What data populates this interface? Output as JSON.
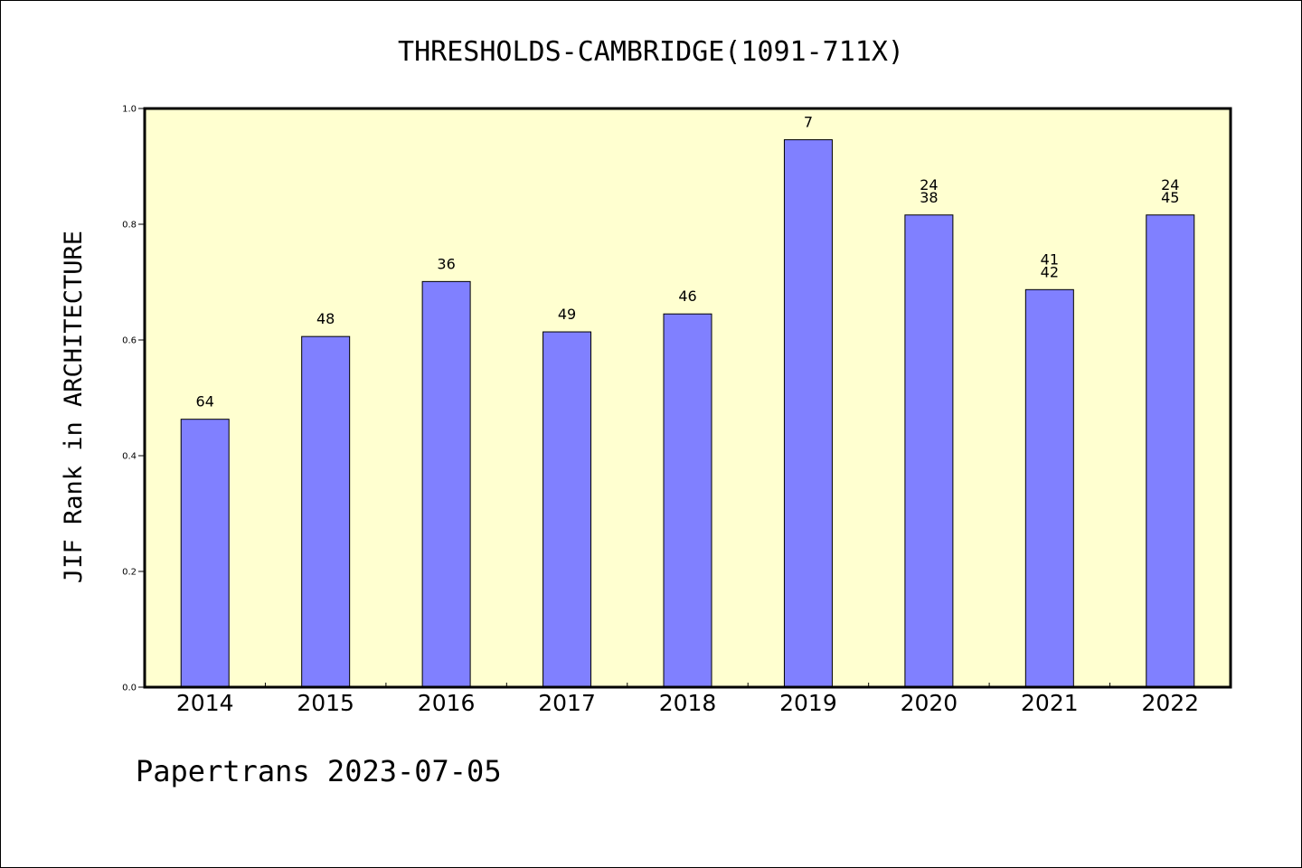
{
  "chart_data": {
    "type": "bar",
    "title": "THRESHOLDS-CAMBRIDGE(1091-711X)",
    "xlabel": "",
    "ylabel": "JIF Rank in ARCHITECTURE",
    "ylim": [
      0,
      1.0
    ],
    "yticks": [
      "0.0",
      "0.2",
      "0.4",
      "0.6",
      "0.8",
      "1.0"
    ],
    "categories": [
      "2014",
      "2015",
      "2016",
      "2017",
      "2018",
      "2019",
      "2020",
      "2021",
      "2022"
    ],
    "values": [
      0.463,
      0.606,
      0.701,
      0.614,
      0.645,
      0.946,
      0.816,
      0.687,
      0.816
    ],
    "bar_labels": [
      [
        "64"
      ],
      [
        "48"
      ],
      [
        "36"
      ],
      [
        "49"
      ],
      [
        "46"
      ],
      [
        "7"
      ],
      [
        "24",
        "38"
      ],
      [
        "41",
        "42"
      ],
      [
        "24",
        "45"
      ]
    ],
    "grid": false,
    "legend": "none",
    "colors": {
      "bar": "#8080ff",
      "plot_bg": "#ffffd0"
    }
  },
  "footer": "Papertrans 2023-07-05"
}
